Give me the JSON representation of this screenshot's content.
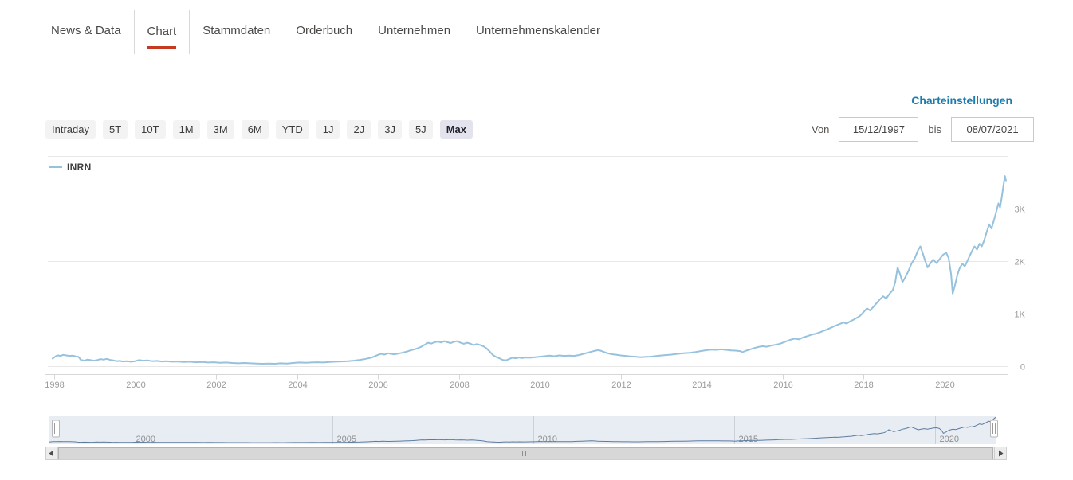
{
  "tabs": {
    "items": [
      {
        "label": "News & Data",
        "active": false
      },
      {
        "label": "Chart",
        "active": true
      },
      {
        "label": "Stammdaten",
        "active": false
      },
      {
        "label": "Orderbuch",
        "active": false
      },
      {
        "label": "Unternehmen",
        "active": false
      },
      {
        "label": "Unternehmenskalender",
        "active": false
      }
    ]
  },
  "chart_controls": {
    "settings_link": "Charteinstellungen",
    "range_buttons": [
      {
        "label": "Intraday",
        "selected": false
      },
      {
        "label": "5T",
        "selected": false
      },
      {
        "label": "10T",
        "selected": false
      },
      {
        "label": "1M",
        "selected": false
      },
      {
        "label": "3M",
        "selected": false
      },
      {
        "label": "6M",
        "selected": false
      },
      {
        "label": "YTD",
        "selected": false
      },
      {
        "label": "1J",
        "selected": false
      },
      {
        "label": "2J",
        "selected": false
      },
      {
        "label": "3J",
        "selected": false
      },
      {
        "label": "5J",
        "selected": false
      },
      {
        "label": "Max",
        "selected": true
      }
    ],
    "date_from_label": "Von",
    "date_from_value": "15/12/1997",
    "date_to_label": "bis",
    "date_to_value": "08/07/2021"
  },
  "colors": {
    "accent_red": "#c63a21",
    "link_blue": "#1d7cae",
    "series_line": "#96c2de",
    "navigator_line": "#5c7ba1",
    "navigator_bg": "#e8edf3"
  },
  "chart_data": {
    "type": "line",
    "title": "",
    "xlabel": "",
    "ylabel": "",
    "grid": true,
    "legend_position": "top-left",
    "x_range": [
      1997.96,
      2021.52
    ],
    "y_range": [
      0,
      4000
    ],
    "y_ticks": [
      {
        "value": 0,
        "label": "0"
      },
      {
        "value": 1000,
        "label": "1K"
      },
      {
        "value": 2000,
        "label": "2K"
      },
      {
        "value": 3000,
        "label": "3K"
      },
      {
        "value": 4000,
        "label": ""
      }
    ],
    "x_ticks": [
      {
        "value": 1998,
        "label": "1998"
      },
      {
        "value": 2000,
        "label": "2000"
      },
      {
        "value": 2002,
        "label": "2002"
      },
      {
        "value": 2004,
        "label": "2004"
      },
      {
        "value": 2006,
        "label": "2006"
      },
      {
        "value": 2008,
        "label": "2008"
      },
      {
        "value": 2010,
        "label": "2010"
      },
      {
        "value": 2012,
        "label": "2012"
      },
      {
        "value": 2014,
        "label": "2014"
      },
      {
        "value": 2016,
        "label": "2016"
      },
      {
        "value": 2018,
        "label": "2018"
      },
      {
        "value": 2020,
        "label": "2020"
      }
    ],
    "navigator_ticks": [
      2000,
      2005,
      2010,
      2015,
      2020
    ],
    "series": [
      {
        "name": "INRN",
        "color": "#96c2de",
        "points": [
          [
            1997.96,
            145
          ],
          [
            1998.04,
            190
          ],
          [
            1998.1,
            205
          ],
          [
            1998.16,
            195
          ],
          [
            1998.22,
            215
          ],
          [
            1998.3,
            205
          ],
          [
            1998.38,
            195
          ],
          [
            1998.46,
            200
          ],
          [
            1998.54,
            185
          ],
          [
            1998.6,
            175
          ],
          [
            1998.66,
            120
          ],
          [
            1998.74,
            105
          ],
          [
            1998.82,
            125
          ],
          [
            1998.9,
            115
          ],
          [
            1998.98,
            105
          ],
          [
            1999.06,
            115
          ],
          [
            1999.14,
            135
          ],
          [
            1999.22,
            125
          ],
          [
            1999.3,
            140
          ],
          [
            1999.38,
            120
          ],
          [
            1999.46,
            110
          ],
          [
            1999.54,
            95
          ],
          [
            1999.62,
            100
          ],
          [
            1999.7,
            90
          ],
          [
            1999.8,
            95
          ],
          [
            1999.9,
            85
          ],
          [
            2000.0,
            95
          ],
          [
            2000.1,
            115
          ],
          [
            2000.2,
            105
          ],
          [
            2000.3,
            110
          ],
          [
            2000.42,
            95
          ],
          [
            2000.54,
            100
          ],
          [
            2000.66,
            90
          ],
          [
            2000.78,
            95
          ],
          [
            2000.9,
            85
          ],
          [
            2001.05,
            90
          ],
          [
            2001.2,
            80
          ],
          [
            2001.35,
            85
          ],
          [
            2001.5,
            75
          ],
          [
            2001.65,
            80
          ],
          [
            2001.8,
            70
          ],
          [
            2001.95,
            75
          ],
          [
            2002.1,
            65
          ],
          [
            2002.25,
            70
          ],
          [
            2002.4,
            60
          ],
          [
            2002.55,
            55
          ],
          [
            2002.7,
            60
          ],
          [
            2002.85,
            55
          ],
          [
            2003.0,
            50
          ],
          [
            2003.15,
            45
          ],
          [
            2003.3,
            50
          ],
          [
            2003.45,
            45
          ],
          [
            2003.6,
            55
          ],
          [
            2003.75,
            50
          ],
          [
            2003.9,
            60
          ],
          [
            2004.05,
            70
          ],
          [
            2004.2,
            65
          ],
          [
            2004.35,
            70
          ],
          [
            2004.5,
            75
          ],
          [
            2004.65,
            70
          ],
          [
            2004.8,
            80
          ],
          [
            2004.95,
            85
          ],
          [
            2005.1,
            90
          ],
          [
            2005.25,
            95
          ],
          [
            2005.4,
            105
          ],
          [
            2005.55,
            120
          ],
          [
            2005.7,
            140
          ],
          [
            2005.85,
            165
          ],
          [
            2006.0,
            215
          ],
          [
            2006.08,
            235
          ],
          [
            2006.16,
            220
          ],
          [
            2006.24,
            245
          ],
          [
            2006.32,
            235
          ],
          [
            2006.4,
            225
          ],
          [
            2006.5,
            240
          ],
          [
            2006.6,
            255
          ],
          [
            2006.7,
            275
          ],
          [
            2006.8,
            300
          ],
          [
            2006.9,
            320
          ],
          [
            2007.0,
            345
          ],
          [
            2007.08,
            375
          ],
          [
            2007.16,
            410
          ],
          [
            2007.24,
            445
          ],
          [
            2007.32,
            430
          ],
          [
            2007.4,
            455
          ],
          [
            2007.48,
            470
          ],
          [
            2007.56,
            450
          ],
          [
            2007.64,
            475
          ],
          [
            2007.72,
            455
          ],
          [
            2007.8,
            440
          ],
          [
            2007.88,
            465
          ],
          [
            2007.96,
            475
          ],
          [
            2008.04,
            445
          ],
          [
            2008.12,
            425
          ],
          [
            2008.2,
            445
          ],
          [
            2008.28,
            430
          ],
          [
            2008.36,
            400
          ],
          [
            2008.44,
            420
          ],
          [
            2008.52,
            405
          ],
          [
            2008.6,
            380
          ],
          [
            2008.68,
            340
          ],
          [
            2008.76,
            280
          ],
          [
            2008.84,
            210
          ],
          [
            2008.92,
            175
          ],
          [
            2009.0,
            150
          ],
          [
            2009.08,
            120
          ],
          [
            2009.16,
            110
          ],
          [
            2009.24,
            135
          ],
          [
            2009.32,
            160
          ],
          [
            2009.4,
            150
          ],
          [
            2009.48,
            165
          ],
          [
            2009.56,
            155
          ],
          [
            2009.64,
            165
          ],
          [
            2009.76,
            160
          ],
          [
            2009.88,
            170
          ],
          [
            2010.0,
            180
          ],
          [
            2010.12,
            190
          ],
          [
            2010.24,
            200
          ],
          [
            2010.36,
            190
          ],
          [
            2010.48,
            205
          ],
          [
            2010.6,
            195
          ],
          [
            2010.72,
            200
          ],
          [
            2010.84,
            195
          ],
          [
            2010.96,
            210
          ],
          [
            2011.08,
            235
          ],
          [
            2011.2,
            260
          ],
          [
            2011.32,
            285
          ],
          [
            2011.44,
            305
          ],
          [
            2011.52,
            290
          ],
          [
            2011.6,
            265
          ],
          [
            2011.7,
            240
          ],
          [
            2011.8,
            225
          ],
          [
            2011.9,
            215
          ],
          [
            2012.0,
            205
          ],
          [
            2012.12,
            195
          ],
          [
            2012.24,
            185
          ],
          [
            2012.36,
            180
          ],
          [
            2012.48,
            170
          ],
          [
            2012.6,
            175
          ],
          [
            2012.72,
            180
          ],
          [
            2012.84,
            190
          ],
          [
            2012.96,
            200
          ],
          [
            2013.1,
            210
          ],
          [
            2013.25,
            220
          ],
          [
            2013.4,
            235
          ],
          [
            2013.55,
            245
          ],
          [
            2013.7,
            255
          ],
          [
            2013.85,
            270
          ],
          [
            2014.0,
            290
          ],
          [
            2014.12,
            305
          ],
          [
            2014.24,
            315
          ],
          [
            2014.36,
            310
          ],
          [
            2014.48,
            320
          ],
          [
            2014.6,
            310
          ],
          [
            2014.72,
            300
          ],
          [
            2014.84,
            295
          ],
          [
            2014.96,
            285
          ],
          [
            2015.0,
            265
          ],
          [
            2015.1,
            295
          ],
          [
            2015.2,
            320
          ],
          [
            2015.3,
            345
          ],
          [
            2015.4,
            365
          ],
          [
            2015.5,
            380
          ],
          [
            2015.6,
            370
          ],
          [
            2015.7,
            390
          ],
          [
            2015.8,
            405
          ],
          [
            2015.9,
            420
          ],
          [
            2016.0,
            445
          ],
          [
            2016.1,
            475
          ],
          [
            2016.2,
            505
          ],
          [
            2016.3,
            525
          ],
          [
            2016.4,
            510
          ],
          [
            2016.5,
            545
          ],
          [
            2016.6,
            570
          ],
          [
            2016.7,
            595
          ],
          [
            2016.8,
            615
          ],
          [
            2016.9,
            640
          ],
          [
            2017.0,
            670
          ],
          [
            2017.1,
            700
          ],
          [
            2017.2,
            735
          ],
          [
            2017.3,
            770
          ],
          [
            2017.4,
            800
          ],
          [
            2017.5,
            830
          ],
          [
            2017.58,
            810
          ],
          [
            2017.66,
            850
          ],
          [
            2017.74,
            880
          ],
          [
            2017.82,
            915
          ],
          [
            2017.9,
            950
          ],
          [
            2018.0,
            1030
          ],
          [
            2018.08,
            1100
          ],
          [
            2018.16,
            1060
          ],
          [
            2018.24,
            1130
          ],
          [
            2018.32,
            1200
          ],
          [
            2018.4,
            1270
          ],
          [
            2018.48,
            1330
          ],
          [
            2018.56,
            1290
          ],
          [
            2018.64,
            1380
          ],
          [
            2018.72,
            1450
          ],
          [
            2018.78,
            1600
          ],
          [
            2018.84,
            1880
          ],
          [
            2018.9,
            1750
          ],
          [
            2018.96,
            1600
          ],
          [
            2019.02,
            1680
          ],
          [
            2019.1,
            1800
          ],
          [
            2019.18,
            1950
          ],
          [
            2019.26,
            2050
          ],
          [
            2019.34,
            2200
          ],
          [
            2019.4,
            2280
          ],
          [
            2019.46,
            2150
          ],
          [
            2019.52,
            2000
          ],
          [
            2019.58,
            1880
          ],
          [
            2019.64,
            1950
          ],
          [
            2019.72,
            2030
          ],
          [
            2019.8,
            1960
          ],
          [
            2019.88,
            2040
          ],
          [
            2019.96,
            2120
          ],
          [
            2020.04,
            2160
          ],
          [
            2020.1,
            2060
          ],
          [
            2020.16,
            1750
          ],
          [
            2020.2,
            1380
          ],
          [
            2020.26,
            1550
          ],
          [
            2020.32,
            1750
          ],
          [
            2020.38,
            1880
          ],
          [
            2020.44,
            1950
          ],
          [
            2020.5,
            1900
          ],
          [
            2020.56,
            2000
          ],
          [
            2020.62,
            2100
          ],
          [
            2020.68,
            2200
          ],
          [
            2020.74,
            2280
          ],
          [
            2020.8,
            2220
          ],
          [
            2020.86,
            2330
          ],
          [
            2020.92,
            2280
          ],
          [
            2020.98,
            2400
          ],
          [
            2021.04,
            2550
          ],
          [
            2021.1,
            2700
          ],
          [
            2021.16,
            2620
          ],
          [
            2021.22,
            2780
          ],
          [
            2021.28,
            2950
          ],
          [
            2021.33,
            3100
          ],
          [
            2021.37,
            3020
          ],
          [
            2021.41,
            3200
          ],
          [
            2021.45,
            3420
          ],
          [
            2021.49,
            3620
          ],
          [
            2021.52,
            3520
          ]
        ]
      }
    ]
  }
}
